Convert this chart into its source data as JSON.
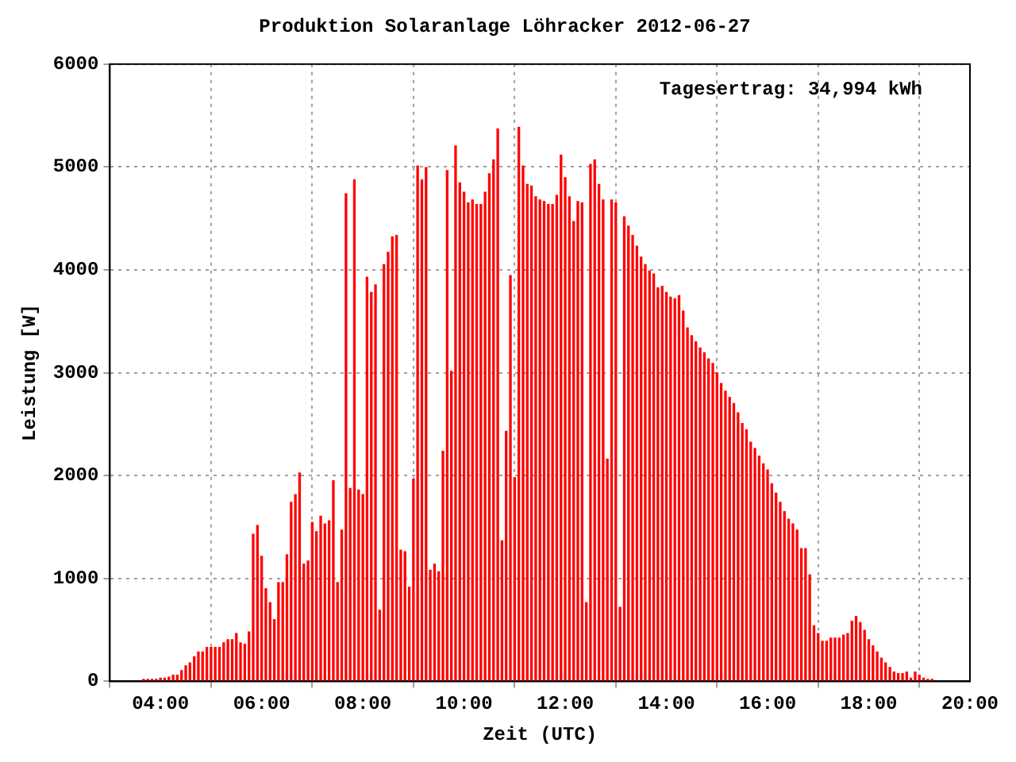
{
  "chart_data": {
    "type": "bar",
    "title": "Produktion Solaranlage Löhracker 2012-06-27",
    "xlabel": "Zeit (UTC)",
    "ylabel": "Leistung [W]",
    "annotations": [
      "Tagesertrag: 34,994 kWh"
    ],
    "x": [
      3.667,
      3.75,
      3.833,
      3.917,
      4,
      4.083,
      4.167,
      4.25,
      4.333,
      4.417,
      4.5,
      4.583,
      4.667,
      4.75,
      4.833,
      4.917,
      5,
      5.083,
      5.167,
      5.25,
      5.333,
      5.417,
      5.5,
      5.583,
      5.667,
      5.75,
      5.833,
      5.917,
      6,
      6.083,
      6.167,
      6.25,
      6.333,
      6.417,
      6.5,
      6.583,
      6.667,
      6.75,
      6.833,
      6.917,
      7,
      7.083,
      7.167,
      7.25,
      7.333,
      7.417,
      7.5,
      7.583,
      7.667,
      7.75,
      7.833,
      7.917,
      8,
      8.083,
      8.167,
      8.25,
      8.333,
      8.417,
      8.5,
      8.583,
      8.667,
      8.75,
      8.833,
      8.917,
      9,
      9.083,
      9.167,
      9.25,
      9.333,
      9.417,
      9.5,
      9.583,
      9.667,
      9.75,
      9.833,
      9.917,
      10,
      10.083,
      10.167,
      10.25,
      10.333,
      10.417,
      10.5,
      10.583,
      10.667,
      10.75,
      10.833,
      10.917,
      11,
      11.083,
      11.167,
      11.25,
      11.333,
      11.417,
      11.5,
      11.583,
      11.667,
      11.75,
      11.833,
      11.917,
      12,
      12.083,
      12.167,
      12.25,
      12.333,
      12.417,
      12.5,
      12.583,
      12.667,
      12.75,
      12.833,
      12.917,
      13,
      13.083,
      13.167,
      13.25,
      13.333,
      13.417,
      13.5,
      13.583,
      13.667,
      13.75,
      13.833,
      13.917,
      14,
      14.083,
      14.167,
      14.25,
      14.333,
      14.417,
      14.5,
      14.583,
      14.667,
      14.75,
      14.833,
      14.917,
      15,
      15.083,
      15.167,
      15.25,
      15.333,
      15.417,
      15.5,
      15.583,
      15.667,
      15.75,
      15.833,
      15.917,
      16,
      16.083,
      16.167,
      16.25,
      16.333,
      16.417,
      16.5,
      16.583,
      16.667,
      16.75,
      16.833,
      16.917,
      17,
      17.083,
      17.167,
      17.25,
      17.333,
      17.417,
      17.5,
      17.583,
      17.667,
      17.75,
      17.833,
      17.917,
      18,
      18.083,
      18.167,
      18.25,
      18.333,
      18.417,
      18.5,
      18.583,
      18.667,
      18.75,
      18.833,
      18.917,
      19,
      19.083,
      19.167,
      19.25
    ],
    "series": [
      {
        "color": "#ff0000",
        "values": [
          20,
          20,
          20,
          20,
          30,
          30,
          40,
          60,
          60,
          105,
          150,
          180,
          240,
          285,
          285,
          330,
          330,
          330,
          330,
          375,
          405,
          405,
          465,
          375,
          360,
          480,
          1430,
          1515,
          1215,
          900,
          765,
          600,
          960,
          960,
          1230,
          1740,
          1815,
          2025,
          1140,
          1170,
          1545,
          1455,
          1605,
          1530,
          1560,
          1950,
          960,
          1470,
          4740,
          1875,
          4875,
          1860,
          1815,
          3930,
          3780,
          3855,
          690,
          4050,
          4170,
          4320,
          4335,
          1275,
          1260,
          915,
          1965,
          5010,
          4875,
          4995,
          1080,
          1140,
          1065,
          2235,
          4965,
          3015,
          5205,
          4845,
          4755,
          4650,
          4680,
          4635,
          4635,
          4755,
          4935,
          5070,
          5370,
          1365,
          2430,
          3945,
          1980,
          5385,
          5010,
          4830,
          4815,
          4710,
          4680,
          4665,
          4635,
          4635,
          4725,
          5115,
          4895,
          4710,
          4470,
          4665,
          4650,
          765,
          5025,
          5070,
          4830,
          4680,
          2160,
          4680,
          4650,
          720,
          4515,
          4425,
          4335,
          4230,
          4125,
          4050,
          3990,
          3960,
          3825,
          3840,
          3780,
          3735,
          3720,
          3750,
          3600,
          3435,
          3360,
          3300,
          3240,
          3195,
          3135,
          3090,
          3000,
          2895,
          2820,
          2760,
          2700,
          2610,
          2505,
          2445,
          2325,
          2265,
          2190,
          2115,
          2055,
          1920,
          1830,
          1740,
          1650,
          1575,
          1530,
          1470,
          1290,
          1290,
          1035,
          540,
          465,
          390,
          390,
          420,
          420,
          420,
          450,
          465,
          585,
          630,
          570,
          495,
          405,
          345,
          285,
          225,
          180,
          135,
          90,
          75,
          75,
          90,
          30,
          90,
          60,
          30,
          20,
          20
        ]
      }
    ],
    "xlim": [
      3,
      20
    ],
    "xticks": [
      {
        "value": 4,
        "label": "04:00"
      },
      {
        "value": 6,
        "label": "06:00"
      },
      {
        "value": 8,
        "label": "08:00"
      },
      {
        "value": 10,
        "label": "10:00"
      },
      {
        "value": 12,
        "label": "12:00"
      },
      {
        "value": 14,
        "label": "14:00"
      },
      {
        "value": 16,
        "label": "16:00"
      },
      {
        "value": 18,
        "label": "18:00"
      },
      {
        "value": 20,
        "label": "20:00"
      }
    ],
    "ylim": [
      0,
      6000
    ],
    "yticks": [
      0,
      1000,
      2000,
      3000,
      4000,
      5000,
      6000
    ],
    "grid": true,
    "legend": false
  }
}
